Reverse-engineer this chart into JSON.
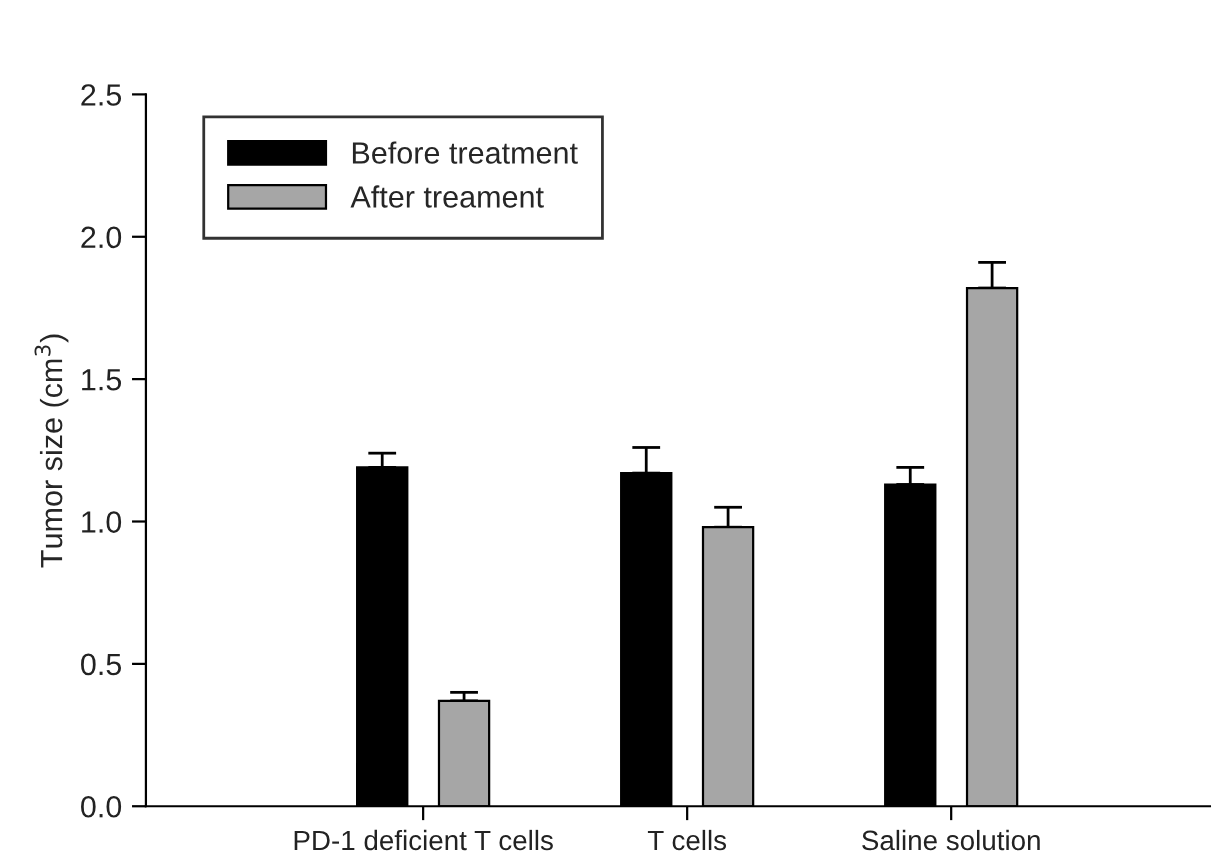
{
  "chart_data": {
    "type": "bar",
    "ylabel": "Tumor size (cm$^{3}$)",
    "categories": [
      "PD-1 deficient T cells",
      "T cells",
      "Saline solution"
    ],
    "series": [
      {
        "name": "Before treatment",
        "color": "#000000",
        "values": [
          1.19,
          1.17,
          1.13
        ],
        "errors": [
          [
            1.19,
            1.24
          ],
          [
            1.17,
            1.26
          ],
          [
            1.13,
            1.19
          ]
        ]
      },
      {
        "name": "After treament",
        "color": "#a6a6a6",
        "values": [
          0.37,
          0.98,
          1.82
        ],
        "errors": [
          [
            0.37,
            0.4
          ],
          [
            0.98,
            1.05
          ],
          [
            1.82,
            1.91
          ]
        ]
      }
    ],
    "ylim": [
      0,
      2.5
    ],
    "yticks": [
      {
        "value": 0,
        "label": "0.0"
      },
      {
        "value": 0.5,
        "label": "0.5"
      },
      {
        "value": 1,
        "label": "1.0"
      },
      {
        "value": 1.5,
        "label": "1.5"
      },
      {
        "value": 2,
        "label": "2.0"
      },
      {
        "value": 2.5,
        "label": "2.5"
      }
    ],
    "legend": "top left",
    "grid": false
  }
}
